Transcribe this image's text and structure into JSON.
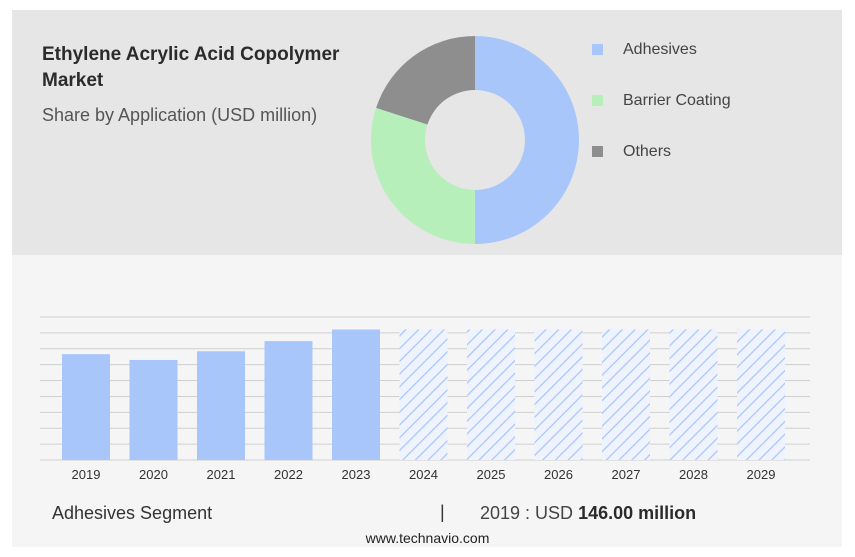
{
  "colors": {
    "adhesives": "#a9c6fb",
    "barrier_coating": "#b7efba",
    "others": "#8e8e8e",
    "grid": "#cfcfcf",
    "hatch": "#a9c6fb"
  },
  "chart_data": [
    {
      "type": "pie",
      "title": "Ethylene Acrylic Acid Copolymer Market",
      "subtitle": "Share by Application (USD million)",
      "donut": true,
      "legend_position": "right",
      "categories": [
        "Adhesives",
        "Barrier Coating",
        "Others"
      ],
      "values": [
        50,
        30,
        20
      ]
    },
    {
      "type": "bar",
      "categories": [
        "2019",
        "2020",
        "2021",
        "2022",
        "2023",
        "2024",
        "2025",
        "2026",
        "2027",
        "2028",
        "2029"
      ],
      "values": [
        146.0,
        138.0,
        150.0,
        164.0,
        180.0,
        180.0,
        180.0,
        180.0,
        180.0,
        180.0,
        180.0
      ],
      "forecast_from": "2024",
      "ylim": [
        0,
        200
      ],
      "grid": true
    }
  ],
  "footer": {
    "segment_label": "Adhesives Segment",
    "separator": "|",
    "year_prefix": "2019 : USD ",
    "value_text": "146.00 million"
  },
  "source": "www.technavio.com"
}
